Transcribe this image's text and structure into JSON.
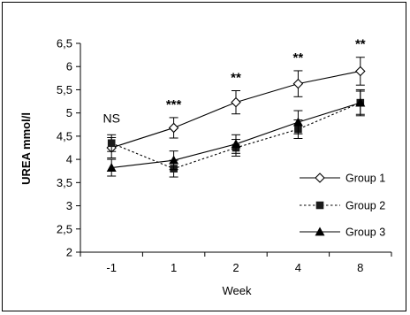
{
  "chart_data": {
    "type": "line",
    "title": "",
    "xlabel": "Week",
    "ylabel": "UREA mmol/l",
    "categories": [
      "-1",
      "1",
      "2",
      "4",
      "8"
    ],
    "yticks": [
      "2",
      "2,5",
      "3",
      "3,5",
      "4",
      "4,5",
      "5",
      "5,5",
      "6",
      "6,5"
    ],
    "ylim": [
      2,
      6.5
    ],
    "grid": false,
    "legend_position": "right",
    "series": [
      {
        "name": "Group 1",
        "marker": "diamond-open",
        "line": "solid",
        "values": [
          4.25,
          4.68,
          5.23,
          5.63,
          5.9
        ],
        "errors": [
          0.22,
          0.22,
          0.25,
          0.28,
          0.3
        ]
      },
      {
        "name": "Group 2",
        "marker": "square-filled",
        "line": "dotted",
        "values": [
          4.35,
          3.8,
          4.25,
          4.65,
          5.22
        ],
        "errors": [
          0.18,
          0.18,
          0.18,
          0.2,
          0.25
        ]
      },
      {
        "name": "Group 3",
        "marker": "triangle-filled",
        "line": "solid",
        "values": [
          3.82,
          3.98,
          4.33,
          4.8,
          5.22
        ],
        "errors": [
          0.18,
          0.2,
          0.2,
          0.25,
          0.28
        ]
      }
    ],
    "annotations": [
      {
        "category": "-1",
        "text": "NS"
      },
      {
        "category": "1",
        "text": "***"
      },
      {
        "category": "2",
        "text": "**"
      },
      {
        "category": "4",
        "text": "**"
      },
      {
        "category": "8",
        "text": "**"
      }
    ]
  }
}
